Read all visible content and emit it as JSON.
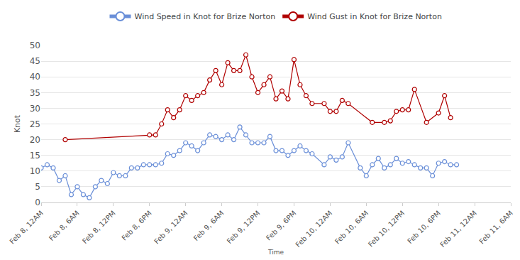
{
  "chart_data": {
    "type": "line",
    "x_label": "Time",
    "y_label": "Knot",
    "legend": "top",
    "grid": true,
    "marker": "circle",
    "xlim": [
      0,
      78
    ],
    "xticks": [
      {
        "value": 0,
        "label": "Feb 8, 12AM"
      },
      {
        "value": 6,
        "label": "Feb 8, 6AM"
      },
      {
        "value": 12,
        "label": "Feb 8, 12PM"
      },
      {
        "value": 18,
        "label": "Feb 8, 6PM"
      },
      {
        "value": 24,
        "label": "Feb 9, 12AM"
      },
      {
        "value": 30,
        "label": "Feb 9, 6AM"
      },
      {
        "value": 36,
        "label": "Feb 9, 12PM"
      },
      {
        "value": 42,
        "label": "Feb 9, 6PM"
      },
      {
        "value": 48,
        "label": "Feb 10, 12AM"
      },
      {
        "value": 54,
        "label": "Feb 10, 6AM"
      },
      {
        "value": 60,
        "label": "Feb 10, 12PM"
      },
      {
        "value": 66,
        "label": "Feb 10, 6PM"
      },
      {
        "value": 72,
        "label": "Feb 11, 12AM"
      },
      {
        "value": 78,
        "label": "Feb 11, 6AM"
      }
    ],
    "ylim": [
      0,
      50
    ],
    "yticks": [
      0,
      5,
      10,
      15,
      20,
      25,
      30,
      35,
      40,
      45,
      50
    ],
    "series": [
      {
        "name": "Wind Speed in Knot for Brize Norton",
        "color": "#6a8fd8",
        "x": [
          0,
          1,
          2,
          3,
          4,
          5,
          6,
          7,
          8,
          9,
          10,
          11,
          12,
          13,
          14,
          15,
          16,
          17,
          18,
          19,
          20,
          21,
          22,
          23,
          24,
          25,
          26,
          27,
          28,
          29,
          30,
          31,
          32,
          33,
          34,
          35,
          36,
          37,
          38,
          39,
          40,
          41,
          42,
          43,
          44,
          45,
          47,
          48,
          49,
          50,
          51,
          53,
          54,
          55,
          56,
          57,
          58,
          59,
          60,
          61,
          62,
          63,
          64,
          65,
          66,
          67,
          68,
          69
        ],
        "values": [
          11,
          12,
          11,
          7,
          8.5,
          2.5,
          5,
          2.5,
          1.5,
          5,
          7,
          6,
          9.5,
          8.5,
          8.5,
          11,
          11,
          12,
          12,
          12,
          12.5,
          15.5,
          15,
          16.5,
          19,
          18,
          16.5,
          19,
          21.5,
          21,
          20,
          21.5,
          20,
          24,
          21.5,
          19,
          19,
          19,
          21,
          16.5,
          16.5,
          15,
          16.5,
          18,
          16.5,
          15.5,
          12,
          14.5,
          13.5,
          14.5,
          19,
          11,
          8.5,
          12,
          14,
          11,
          12,
          14,
          12.5,
          13,
          12,
          11,
          11,
          8.5,
          12.5,
          13,
          12,
          12
        ]
      },
      {
        "name": "Wind Gust in Knot for Brize Norton",
        "color": "#b00000",
        "x": [
          4,
          18,
          19,
          20,
          21,
          22,
          23,
          24,
          25,
          26,
          27,
          28,
          29,
          30,
          31,
          32,
          33,
          34,
          35,
          36,
          37,
          38,
          39,
          40,
          41,
          42,
          43,
          44,
          45,
          47,
          48,
          49,
          50,
          51,
          55,
          57,
          58,
          59,
          60,
          61,
          62,
          64,
          66,
          67,
          68
        ],
        "values": [
          20,
          21.5,
          21.5,
          25,
          29.5,
          27,
          29.5,
          34,
          32.5,
          34,
          35,
          39,
          42,
          37.5,
          44.5,
          42,
          42,
          47,
          40,
          35,
          37.5,
          40,
          33,
          35.5,
          33,
          45.5,
          37.5,
          34,
          31.5,
          31.5,
          29,
          29,
          32.5,
          31.5,
          25.5,
          25.5,
          26,
          29,
          29.5,
          29.5,
          36,
          25.5,
          28.5,
          34,
          27
        ]
      }
    ]
  }
}
